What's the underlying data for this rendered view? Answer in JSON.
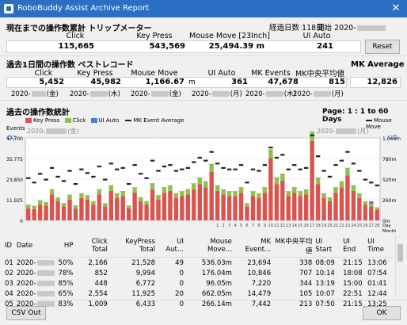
{
  "window": {
    "title": "RoboBuddy Assist Archive Report"
  },
  "trip": {
    "heading": "現在までの操作数累計 トリップメーター",
    "elapsed_label": "経過日数 118日",
    "start_label": "開始 2020-",
    "columns": [
      {
        "label": "Click",
        "value": "115,665"
      },
      {
        "label": "Key Press",
        "value": "543,569"
      },
      {
        "label": "Mouse Move [23Inch]",
        "value": "25,494.39 m"
      },
      {
        "label": "UI Auto",
        "value": "241"
      }
    ],
    "reset_label": "Reset"
  },
  "best": {
    "heading": "過去1日間の操作数 ベストレコード",
    "columns": [
      {
        "label": "Click",
        "value": "5,452",
        "date": "2020-",
        "day": "(金)"
      },
      {
        "label": "Key Press",
        "value": "45,982",
        "date": "2020-",
        "day": "(木)"
      },
      {
        "label": "Mouse Move",
        "value": "1,166.67",
        "unit": "m",
        "date": "2020-",
        "day": "(金)"
      },
      {
        "label": "UI Auto",
        "value": "361",
        "date": "2020-",
        "day": "(月)"
      },
      {
        "label": "MK Events",
        "value": "47,678",
        "date": "2020-",
        "day": "(木)"
      },
      {
        "label": "MK中央平均値",
        "value": "815",
        "date": "2020-",
        "day": "(月)"
      }
    ]
  },
  "mk_average": {
    "label": "MK Average",
    "value": "12,826"
  },
  "stats": {
    "heading": "過去の操作数統計",
    "page_label": "Page: 1 : 1 to 60 Days",
    "left_date": "2020-",
    "left_day": "(金)",
    "right_date": "2020-",
    "right_day": "(月)",
    "legend": [
      {
        "name": "Key Press",
        "color": "#d9534f"
      },
      {
        "name": "Click",
        "color": "#8fc04a"
      },
      {
        "name": "UI Auto",
        "color": "#4a7fd6"
      },
      {
        "name": "MK Event Average",
        "color": "#222222"
      }
    ],
    "legend_right": {
      "name": "Mouse Move",
      "color": "#222222"
    },
    "y_title": "Events",
    "y_ticks": [
      "47,700",
      "35,775",
      "23,850",
      "11,925",
      "0"
    ],
    "y2_ticks": [
      "1,040m",
      "780m",
      "520m",
      "260m",
      "0m"
    ],
    "x_unit_day": "Day",
    "x_unit_month": "Month",
    "x_days": [
      "1",
      "2",
      "3",
      "4",
      "5",
      "6",
      "7",
      "8",
      "9",
      "10",
      "11",
      "12",
      "13",
      "14",
      "15",
      "16",
      "17",
      "18",
      "19",
      "20",
      "21",
      "22",
      "23",
      "24",
      "25",
      "26",
      "27",
      "28"
    ]
  },
  "chart_data": {
    "type": "bar",
    "ylim": [
      0,
      47700
    ],
    "y2lim": [
      0,
      1040
    ],
    "series": [
      {
        "name": "Key Press",
        "values": [
          7000,
          6500,
          9000,
          8500,
          15000,
          11000,
          8000,
          12000,
          7000,
          13000,
          12000,
          9000,
          15000,
          8000,
          17000,
          13000,
          14000,
          7000,
          16000,
          11000,
          9000,
          18000,
          12000,
          16000,
          17000,
          13000,
          14000,
          15000,
          18000,
          21000,
          19000,
          28000,
          17000,
          15000,
          14000,
          14000,
          16000,
          8000,
          14000,
          13000,
          16000,
          36000,
          21000,
          23000,
          14000,
          16000,
          14000,
          15000,
          45982,
          21000,
          13000,
          11000,
          16000,
          19000,
          26000,
          17000,
          13000,
          9000,
          8000,
          6000
        ]
      },
      {
        "name": "Click",
        "values": [
          2000,
          1800,
          2500,
          2000,
          3000,
          2200,
          1900,
          2800,
          1600,
          2600,
          2500,
          2000,
          3000,
          1800,
          3200,
          2600,
          2800,
          1500,
          3000,
          2300,
          2000,
          3400,
          2500,
          3100,
          3200,
          2600,
          2800,
          3000,
          3300,
          3700,
          3500,
          4600,
          3200,
          2900,
          2800,
          2800,
          3100,
          1800,
          2800,
          2600,
          3100,
          5000,
          3800,
          4000,
          2800,
          3100,
          2800,
          2900,
          5452,
          3800,
          2600,
          2200,
          3100,
          3500,
          4300,
          3200,
          2600,
          1900,
          1700,
          1400
        ]
      },
      {
        "name": "UI Auto",
        "values": [
          0,
          0,
          0,
          0,
          0,
          0,
          0,
          0,
          0,
          0,
          0,
          0,
          0,
          0,
          0,
          0,
          0,
          0,
          0,
          0,
          0,
          0,
          0,
          0,
          0,
          0,
          0,
          0,
          0,
          0,
          0,
          0,
          0,
          0,
          0,
          0,
          0,
          0,
          0,
          0,
          0,
          0,
          0,
          0,
          0,
          0,
          0,
          0,
          0,
          0,
          0,
          0,
          0,
          0,
          0,
          0,
          0,
          0,
          361,
          0
        ]
      },
      {
        "name": "Mouse Move",
        "values": [
          580,
          520,
          640,
          560,
          720,
          600,
          540,
          680,
          500,
          700,
          650,
          600,
          740,
          560,
          780,
          700,
          720,
          500,
          760,
          640,
          580,
          820,
          680,
          740,
          760,
          680,
          700,
          720,
          800,
          860,
          820,
          940,
          780,
          720,
          700,
          700,
          760,
          520,
          700,
          680,
          760,
          1000,
          860,
          900,
          700,
          760,
          700,
          720,
          1166.67,
          880,
          680,
          600,
          760,
          820,
          940,
          780,
          680,
          560,
          520,
          480
        ]
      },
      {
        "name": "MK Event Average",
        "values": [
          9000,
          8500,
          11500,
          10500,
          18000,
          13200,
          9900,
          14800,
          8600,
          15600,
          14500,
          11000,
          18000,
          9800,
          20200,
          15600,
          16800,
          8500,
          19000,
          13300,
          11000,
          21400,
          14500,
          19100,
          20200,
          15600,
          16800,
          18000,
          21300,
          24700,
          22500,
          32600,
          20200,
          17900,
          16800,
          16800,
          19100,
          9800,
          16800,
          15600,
          19100,
          41000,
          24800,
          27000,
          16800,
          19100,
          16800,
          17900,
          47678,
          24800,
          15600,
          13200,
          19100,
          22500,
          30300,
          20200,
          15600,
          10900,
          9700,
          7400
        ]
      }
    ]
  },
  "table": {
    "columns": [
      "ID",
      "Date",
      "HP",
      "Click Total",
      "KeyPress Total",
      "UI Aut...",
      "Mouse Move...",
      "MK Event...",
      "MK中央平均値",
      "UI Start",
      "UI End",
      "UI Time"
    ],
    "rows": [
      [
        "01",
        "2020-",
        "50%",
        "2,166",
        "21,528",
        "49",
        "536.03m",
        "23,694",
        "338",
        "08:09",
        "21:15",
        "13:06"
      ],
      [
        "02",
        "2020-",
        "78%",
        "852",
        "9,994",
        "0",
        "176.04m",
        "10,846",
        "707",
        "10:14",
        "18:08",
        "07:54"
      ],
      [
        "03",
        "2020-",
        "85%",
        "448",
        "6,772",
        "0",
        "96.05m",
        "7,220",
        "344",
        "13:19",
        "15:00",
        "01:41"
      ],
      [
        "04",
        "2020-",
        "65%",
        "2,554",
        "11,925",
        "20",
        "662.05m",
        "14,479",
        "105",
        "10:07",
        "22:51",
        "12:44"
      ],
      [
        "05",
        "2020-",
        "83%",
        "1,009",
        "6,433",
        "0",
        "266.14m",
        "7,442",
        "213",
        "07:50",
        "21:15",
        "13:25"
      ]
    ]
  },
  "footer": {
    "csv_label": "CSV Out",
    "ok_label": "OK"
  }
}
